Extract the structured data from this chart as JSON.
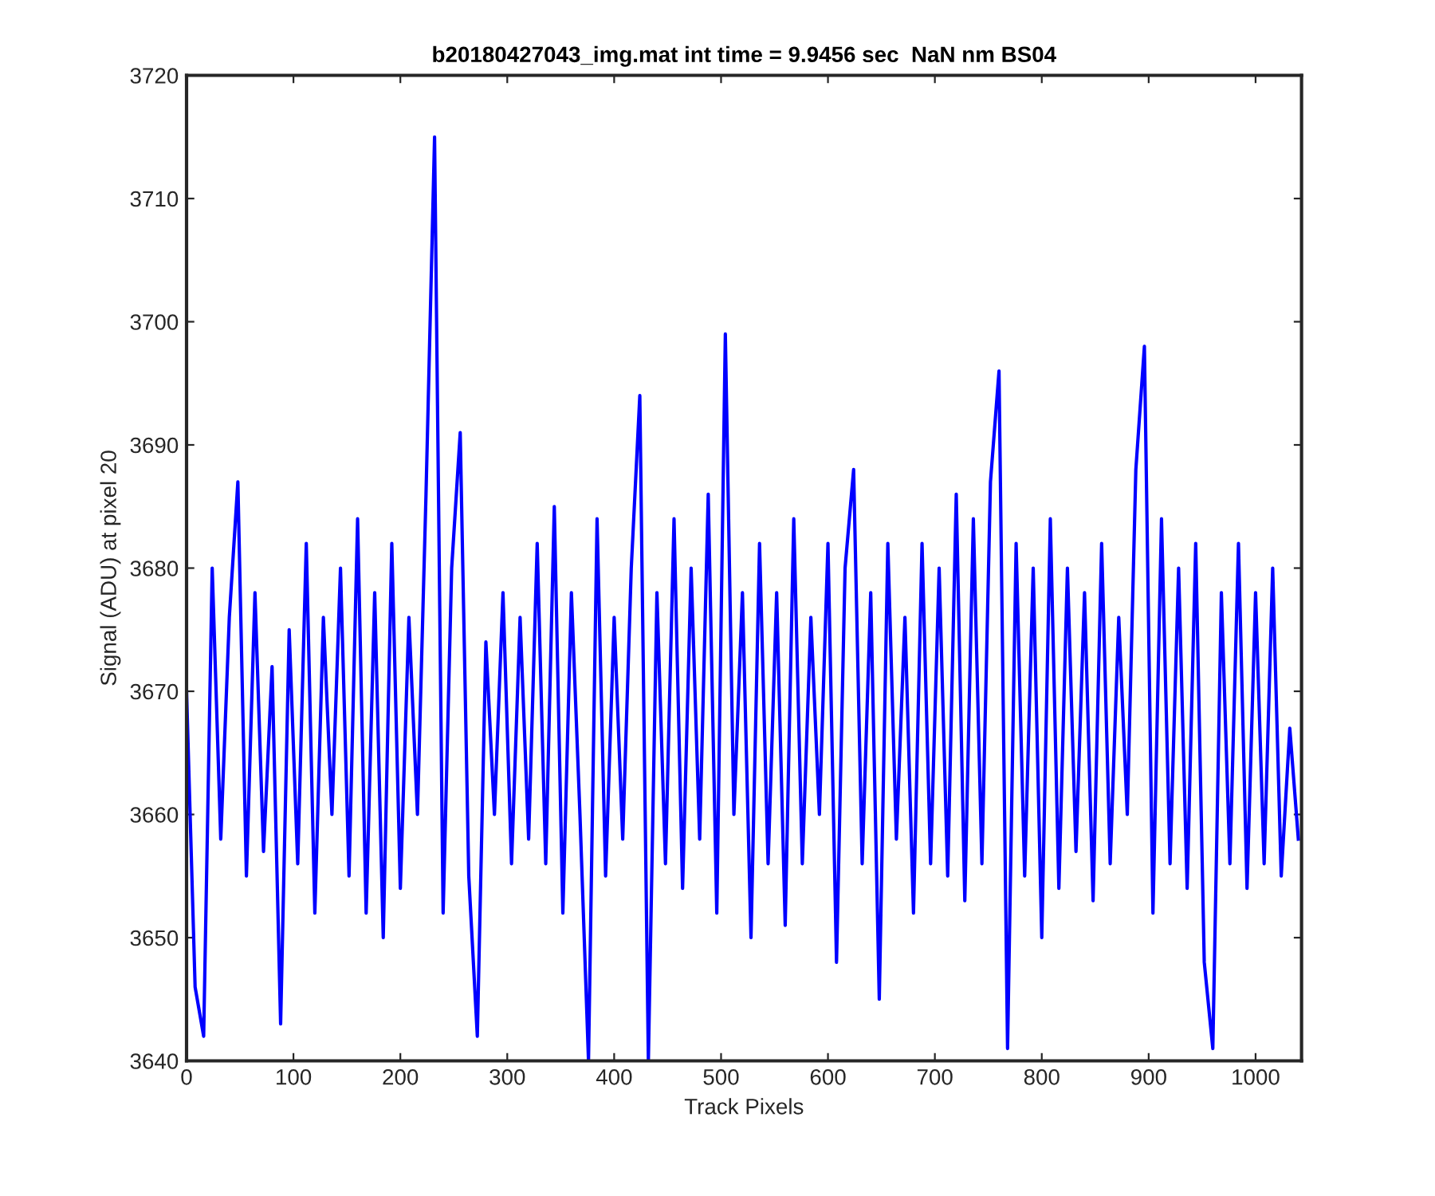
{
  "chart_data": {
    "type": "line",
    "title": "b20180427043_img.mat int time = 9.9456 sec  NaN nm BS04",
    "xlabel": "Track Pixels",
    "ylabel": "Signal (ADU) at pixel 20",
    "xlim": [
      0,
      1043
    ],
    "ylim": [
      3640,
      3720
    ],
    "xticks": [
      0,
      100,
      200,
      300,
      400,
      500,
      600,
      700,
      800,
      900,
      1000
    ],
    "yticks": [
      3640,
      3650,
      3660,
      3670,
      3680,
      3690,
      3700,
      3710,
      3720
    ],
    "grid": false,
    "marker": "none",
    "line_style": "solid",
    "series": [
      {
        "color": "#0000ff",
        "x": [
          0,
          8,
          16,
          24,
          32,
          40,
          48,
          56,
          64,
          72,
          80,
          88,
          96,
          104,
          112,
          120,
          128,
          136,
          144,
          152,
          160,
          168,
          176,
          184,
          192,
          200,
          208,
          216,
          224,
          232,
          240,
          248,
          256,
          264,
          272,
          280,
          288,
          296,
          304,
          312,
          320,
          328,
          336,
          344,
          352,
          360,
          368,
          376,
          384,
          392,
          400,
          408,
          416,
          424,
          432,
          440,
          448,
          456,
          464,
          472,
          480,
          488,
          496,
          504,
          512,
          520,
          528,
          536,
          544,
          552,
          560,
          568,
          576,
          584,
          592,
          600,
          608,
          616,
          624,
          632,
          640,
          648,
          656,
          664,
          672,
          680,
          688,
          696,
          704,
          712,
          720,
          728,
          736,
          744,
          752,
          760,
          768,
          776,
          784,
          792,
          800,
          808,
          816,
          824,
          832,
          840,
          848,
          856,
          864,
          872,
          880,
          888,
          896,
          904,
          912,
          920,
          928,
          936,
          944,
          952,
          960,
          968,
          976,
          984,
          992,
          1000,
          1008,
          1016,
          1024,
          1032,
          1040
        ],
        "values": [
          3670,
          3646,
          3642,
          3680,
          3658,
          3676,
          3687,
          3655,
          3678,
          3657,
          3672,
          3643,
          3675,
          3656,
          3682,
          3652,
          3676,
          3660,
          3680,
          3655,
          3684,
          3652,
          3678,
          3650,
          3682,
          3654,
          3676,
          3660,
          3686,
          3715,
          3652,
          3680,
          3691,
          3655,
          3642,
          3674,
          3660,
          3678,
          3656,
          3676,
          3658,
          3682,
          3656,
          3685,
          3652,
          3678,
          3660,
          3640,
          3684,
          3655,
          3676,
          3658,
          3680,
          3694,
          3640,
          3678,
          3656,
          3684,
          3654,
          3680,
          3658,
          3686,
          3652,
          3699,
          3660,
          3678,
          3650,
          3682,
          3656,
          3678,
          3651,
          3684,
          3656,
          3676,
          3660,
          3682,
          3648,
          3680,
          3688,
          3656,
          3678,
          3645,
          3682,
          3658,
          3676,
          3652,
          3682,
          3656,
          3680,
          3655,
          3686,
          3653,
          3684,
          3656,
          3687,
          3696,
          3641,
          3682,
          3655,
          3680,
          3650,
          3684,
          3654,
          3680,
          3657,
          3678,
          3653,
          3682,
          3656,
          3676,
          3660,
          3688,
          3698,
          3652,
          3684,
          3656,
          3680,
          3654,
          3682,
          3648,
          3641,
          3678,
          3656,
          3682,
          3654,
          3678,
          3656,
          3680,
          3655,
          3667,
          3658
        ]
      }
    ]
  }
}
